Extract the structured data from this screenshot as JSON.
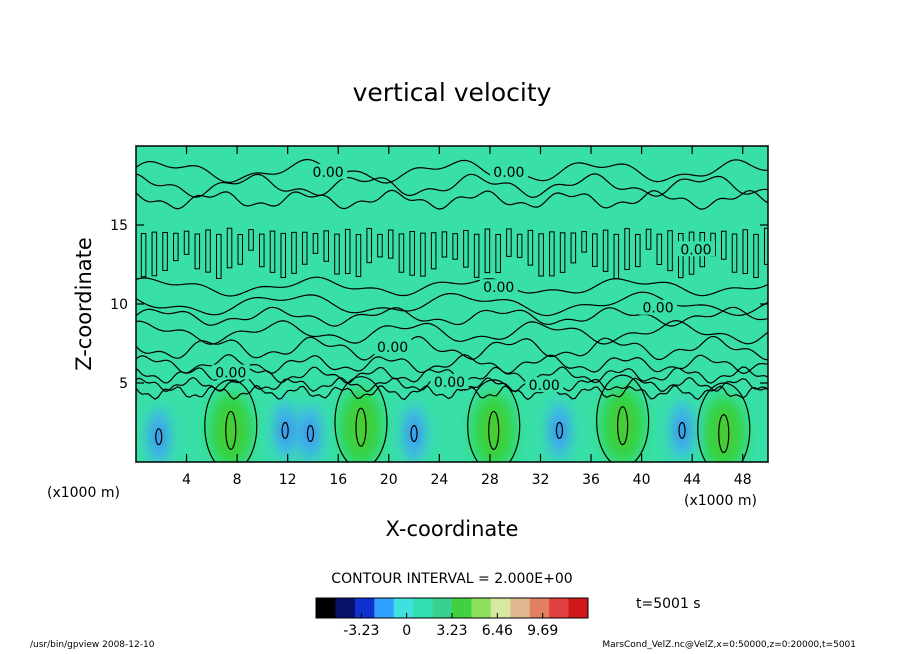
{
  "chart_data": {
    "type": "heatmap",
    "title": "vertical velocity",
    "xlabel": "X-coordinate",
    "ylabel": "Z-coordinate",
    "x_unit_left": "(x1000 m)",
    "x_unit_right": "(x1000 m)",
    "xlim": [
      0,
      50
    ],
    "ylim": [
      0,
      20
    ],
    "x_ticks": [
      4,
      8,
      12,
      16,
      20,
      24,
      28,
      32,
      36,
      40,
      44,
      48
    ],
    "y_ticks": [
      5,
      10,
      15
    ],
    "contour_interval": "CONTOUR INTERVAL = 2.000E+00",
    "contour_labels": [
      {
        "text": "0.00",
        "x": 15.2,
        "z": 18.3
      },
      {
        "text": "0.00",
        "x": 29.5,
        "z": 18.3
      },
      {
        "text": "0.00",
        "x": 44.3,
        "z": 13.4
      },
      {
        "text": "0.00",
        "x": 28.7,
        "z": 11.0
      },
      {
        "text": "0.00",
        "x": 41.3,
        "z": 9.7
      },
      {
        "text": "0.00",
        "x": 20.3,
        "z": 7.2
      },
      {
        "text": "0.00",
        "x": 7.5,
        "z": 5.6
      },
      {
        "text": "0.00",
        "x": 24.8,
        "z": 5.0
      },
      {
        "text": "0.00",
        "x": 32.3,
        "z": 4.8
      }
    ],
    "updraft_cells": [
      {
        "x": 7.5,
        "z": 2.0,
        "peak": 4.0
      },
      {
        "x": 17.8,
        "z": 2.2,
        "peak": 5.5
      },
      {
        "x": 28.3,
        "z": 2.0,
        "peak": 4.5
      },
      {
        "x": 38.5,
        "z": 2.3,
        "peak": 6.0
      },
      {
        "x": 46.5,
        "z": 1.8,
        "peak": 3.5
      }
    ],
    "downdraft_cells": [
      {
        "x": 1.8,
        "z": 1.6,
        "peak": -3.2
      },
      {
        "x": 11.8,
        "z": 2.0,
        "peak": -2.5
      },
      {
        "x": 13.8,
        "z": 1.8,
        "peak": -2.8
      },
      {
        "x": 22.0,
        "z": 1.8,
        "peak": -3.0
      },
      {
        "x": 33.5,
        "z": 2.0,
        "peak": -2.0
      },
      {
        "x": 43.2,
        "z": 2.0,
        "peak": -3.0
      }
    ],
    "colorbar": {
      "min": -6.46,
      "max": 12.92,
      "tick_labels": [
        "-3.23",
        "0",
        "3.23",
        "6.46",
        "9.69"
      ],
      "tick_values": [
        -3.23,
        0,
        3.23,
        6.46,
        9.69
      ],
      "colors": [
        "#000000",
        "#08106a",
        "#1030d0",
        "#30a0ff",
        "#40e0e0",
        "#30e0b0",
        "#3ad090",
        "#40d040",
        "#90e060",
        "#d8e8a0",
        "#e0b890",
        "#e08060",
        "#e04040",
        "#d01818"
      ]
    },
    "time_label": "t=5001 s"
  },
  "footer": {
    "left": "/usr/bin/gpview  2008-12-10",
    "right": "MarsCond_VelZ.nc@VelZ,x=0:50000,z=0:20000,t=5001"
  }
}
